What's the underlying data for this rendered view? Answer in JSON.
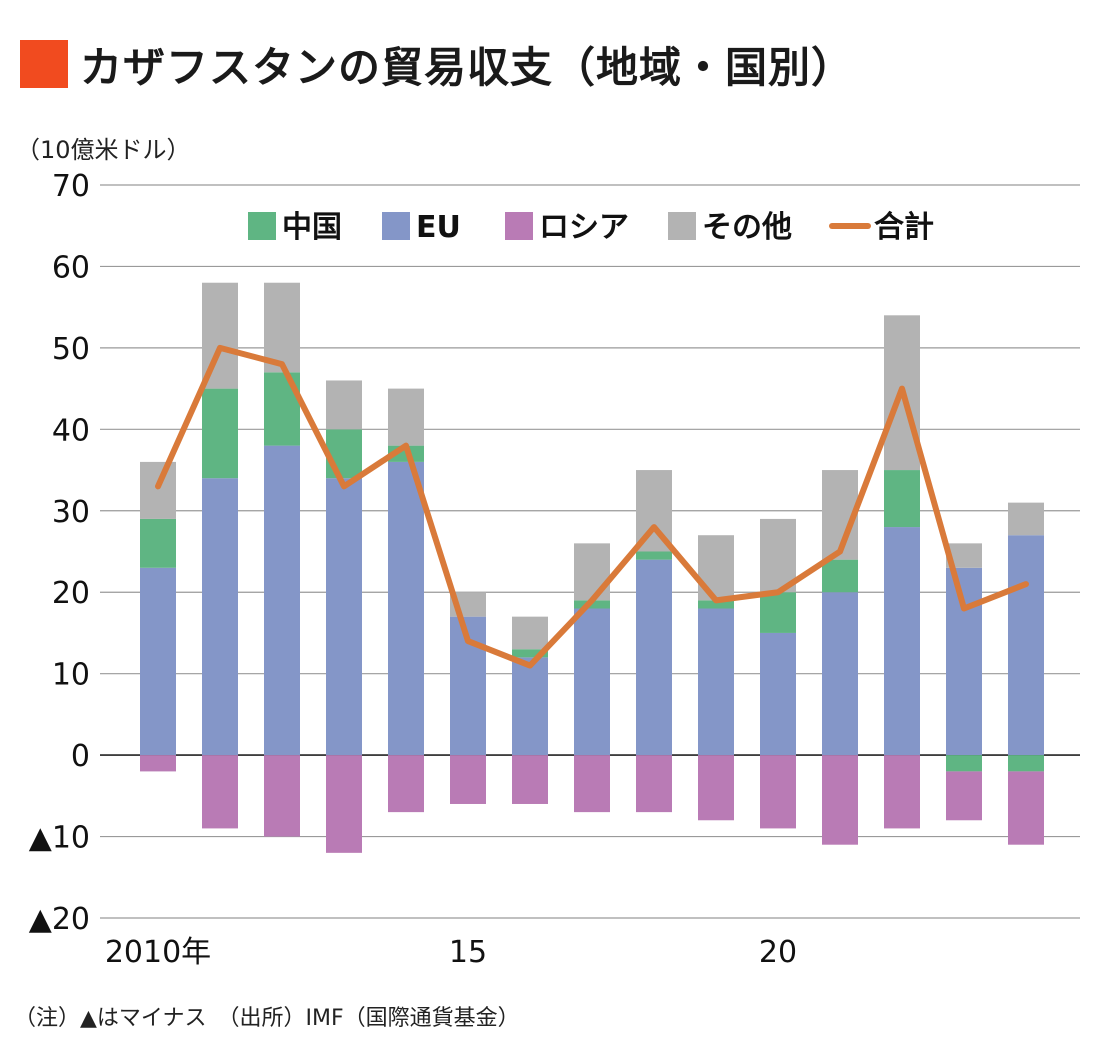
{
  "title": "カザフスタンの貿易収支（地域・国別）",
  "unit_label": "（10億米ドル）",
  "footnote": "（注）▲はマイナス　（出所）IMF（国際通貨基金）",
  "colors": {
    "title_marker": "#f14b1f",
    "china": "#5fb583",
    "eu": "#8496c8",
    "russia": "#b97bb5",
    "other": "#b3b3b3",
    "total": "#d97a3a"
  },
  "chart_data": {
    "type": "bar",
    "stacked": true,
    "years": [
      2010,
      2011,
      2012,
      2013,
      2014,
      2015,
      2016,
      2017,
      2018,
      2019,
      2020,
      2021,
      2022,
      2023,
      2024
    ],
    "x_tick_labels": [
      {
        "year": 2010,
        "label": "2010年"
      },
      {
        "year": 2015,
        "label": "15"
      },
      {
        "year": 2020,
        "label": "20"
      }
    ],
    "y_ticks": [
      70,
      60,
      50,
      40,
      30,
      20,
      10,
      0,
      -10,
      -20
    ],
    "y_tick_labels": [
      "70",
      "60",
      "50",
      "40",
      "30",
      "20",
      "10",
      "0",
      "▲10",
      "▲20"
    ],
    "ylim": [
      -20,
      70
    ],
    "legend_position": "top",
    "series": [
      {
        "name": "中国",
        "key": "china",
        "values": [
          6,
          11,
          9,
          6,
          2,
          0,
          1,
          1,
          1,
          1,
          5,
          4,
          7,
          0,
          0
        ],
        "neg_values": [
          0,
          0,
          0,
          0,
          0,
          0,
          0,
          0,
          0,
          0,
          0,
          0,
          0,
          -2,
          -2
        ]
      },
      {
        "name": "EU",
        "key": "eu",
        "values": [
          23,
          34,
          38,
          34,
          36,
          17,
          12,
          18,
          24,
          18,
          15,
          20,
          28,
          23,
          27
        ]
      },
      {
        "name": "ロシア",
        "key": "russia",
        "values": [
          -2,
          -9,
          -10,
          -12,
          -7,
          -6,
          -6,
          -7,
          -7,
          -8,
          -9,
          -11,
          -9,
          -6,
          -9
        ]
      },
      {
        "name": "その他",
        "key": "other",
        "values": [
          7,
          13,
          11,
          6,
          7,
          3,
          4,
          7,
          10,
          8,
          9,
          11,
          19,
          3,
          4
        ]
      }
    ],
    "total": {
      "name": "合計",
      "values": [
        33,
        50,
        48,
        33,
        38,
        14,
        11,
        19,
        28,
        19,
        20,
        25,
        45,
        18,
        21
      ]
    }
  }
}
